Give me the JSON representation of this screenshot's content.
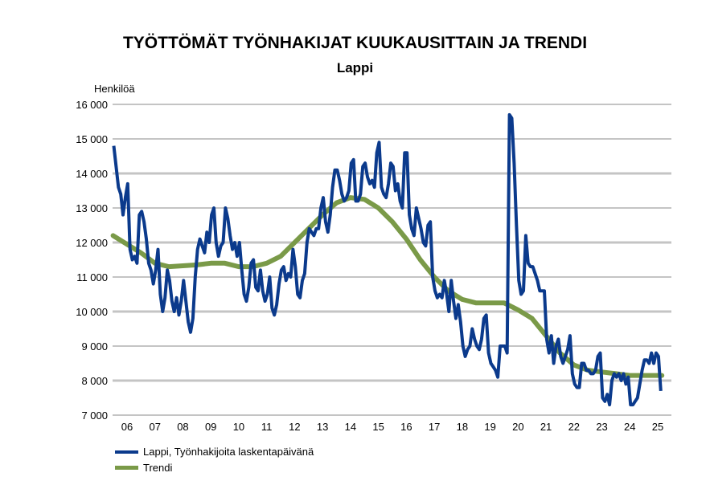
{
  "chart_data": {
    "type": "line",
    "title": "TYÖTTÖMÄT TYÖNHAKIJAT KUUKAUSITTAIN JA TRENDI",
    "subtitle": "Lappi",
    "ylabel": "Henkilöä",
    "xlabel": "",
    "ylim": [
      7000,
      16000
    ],
    "yticks": [
      7000,
      8000,
      9000,
      10000,
      11000,
      12000,
      13000,
      14000,
      15000,
      16000
    ],
    "ytick_labels": [
      "7 000",
      "8 000",
      "9 000",
      "10 000",
      "11 000",
      "12 000",
      "13 000",
      "14 000",
      "15 000",
      "16 000"
    ],
    "xtick_labels": [
      "06",
      "07",
      "08",
      "09",
      "10",
      "11",
      "12",
      "13",
      "14",
      "15",
      "16",
      "17",
      "18",
      "19",
      "20",
      "21",
      "22",
      "23",
      "24",
      "25"
    ],
    "first_year": 2006,
    "grid": true,
    "legend_position": "bottom-left",
    "series": [
      {
        "name": "Lappi, Työnhakijoita laskentapäivänä",
        "color": "#0b3a8c",
        "frequency": "monthly",
        "start": "2006-01",
        "values": [
          14800,
          14200,
          13600,
          13400,
          12800,
          13300,
          13700,
          11800,
          11500,
          11600,
          11400,
          12800,
          12900,
          12600,
          12100,
          11400,
          11200,
          10800,
          11200,
          11800,
          10500,
          10000,
          10400,
          11200,
          10900,
          10300,
          10000,
          10400,
          9900,
          10300,
          10900,
          10300,
          9700,
          9400,
          9800,
          11000,
          11800,
          12100,
          11900,
          11700,
          12300,
          12000,
          12800,
          13000,
          12000,
          11600,
          11900,
          12000,
          13000,
          12700,
          12200,
          11800,
          12000,
          11600,
          12000,
          11200,
          10500,
          10300,
          10700,
          11400,
          11500,
          10700,
          10600,
          11200,
          10600,
          10300,
          10500,
          11000,
          10100,
          9900,
          10200,
          10800,
          11200,
          11300,
          10900,
          11100,
          11000,
          11800,
          11300,
          10500,
          10400,
          10900,
          11100,
          12000,
          12400,
          12300,
          12200,
          12400,
          12400,
          13000,
          13300,
          12600,
          12300,
          12800,
          13600,
          14100,
          14100,
          13800,
          13400,
          13200,
          13300,
          13500,
          14300,
          14400,
          13200,
          13200,
          13400,
          14200,
          14300,
          13900,
          13700,
          13800,
          13600,
          14600,
          14900,
          13600,
          13400,
          13300,
          13700,
          14300,
          14200,
          13500,
          13700,
          13200,
          13000,
          14600,
          14600,
          12800,
          12400,
          12200,
          13000,
          12700,
          12400,
          12000,
          11900,
          12500,
          12600,
          11000,
          10600,
          10400,
          10500,
          10400,
          10900,
          10500,
          10000,
          10900,
          10300,
          9800,
          10200,
          9700,
          9000,
          8700,
          8900,
          9000,
          9500,
          9200,
          9000,
          8900,
          9200,
          9800,
          9900,
          8800,
          8500,
          8400,
          8300,
          8100,
          9000,
          9000,
          9000,
          8800,
          15700,
          15600,
          14300,
          12500,
          10900,
          10500,
          10600,
          12200,
          11400,
          11300,
          11300,
          11100,
          10900,
          10600,
          10600,
          10600,
          9200,
          8800,
          9300,
          8500,
          9000,
          9200,
          8700,
          8500,
          8700,
          8900,
          9300,
          8200,
          7900,
          7800,
          7800,
          8500,
          8500,
          8300,
          8300,
          8200,
          8200,
          8300,
          8700,
          8800,
          7500,
          7400,
          7600,
          7300,
          8000,
          8200,
          8100,
          8200,
          8000,
          8200,
          7900,
          8100,
          7300,
          7300,
          7400,
          7500,
          7900,
          8300,
          8600,
          8600,
          8500,
          8800,
          8500,
          8800,
          8700,
          7700
        ]
      },
      {
        "name": "Trendi",
        "color": "#7a9a48",
        "x": [
          2006.0,
          2007.0,
          2007.5,
          2008.0,
          2009.0,
          2009.5,
          2010.0,
          2010.5,
          2011.0,
          2011.5,
          2012.0,
          2012.5,
          2013.0,
          2013.5,
          2014.0,
          2014.5,
          2015.0,
          2015.5,
          2016.0,
          2016.5,
          2017.0,
          2017.5,
          2018.0,
          2018.5,
          2019.0,
          2019.5,
          2020.0,
          2020.5,
          2021.0,
          2021.5,
          2022.0,
          2022.5,
          2023.0,
          2023.5,
          2024.0,
          2024.5,
          2025.0,
          2025.65
        ],
        "values": [
          12200,
          11700,
          11400,
          11300,
          11350,
          11400,
          11400,
          11300,
          11300,
          11400,
          11600,
          12000,
          12400,
          12800,
          13150,
          13300,
          13250,
          13000,
          12600,
          12100,
          11500,
          11000,
          10600,
          10350,
          10250,
          10250,
          10250,
          10050,
          9800,
          9300,
          8800,
          8450,
          8300,
          8250,
          8200,
          8150,
          8150,
          8150
        ]
      }
    ]
  }
}
